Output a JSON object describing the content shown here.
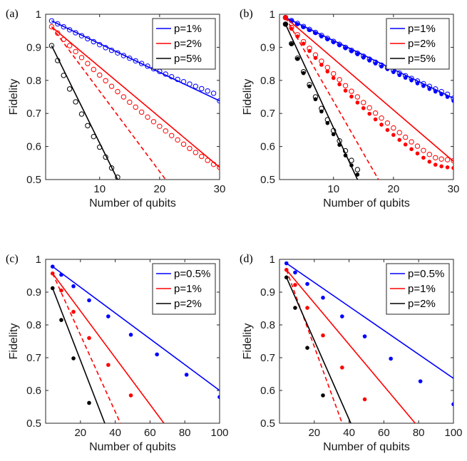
{
  "chart_data": [
    {
      "panel_label": "(a)",
      "type": "line",
      "xlabel": "Number of qubits",
      "ylabel": "Fidelity",
      "xlim": [
        1,
        30
      ],
      "ylim": [
        0.5,
        1
      ],
      "xticks": [
        10,
        20,
        30
      ],
      "yticks": [
        0.5,
        0.6,
        0.7,
        0.8,
        0.9,
        1
      ],
      "ytick_labels": [
        "0.5",
        "0.6",
        "0.7",
        "0.8",
        "0.9",
        "1"
      ],
      "legend_position": "top-right",
      "series": [
        {
          "name": "p=1%",
          "color": "#0000ff",
          "kind": "solid",
          "x": [
            2,
            30
          ],
          "y": [
            0.98,
            0.738
          ]
        },
        {
          "name": "",
          "color": "#0000ff",
          "kind": "open-circles",
          "x": [
            2,
            3,
            4,
            5,
            6,
            7,
            8,
            9,
            10,
            11,
            12,
            13,
            14,
            15,
            16,
            17,
            18,
            19,
            20,
            21,
            22,
            23,
            24,
            25,
            26,
            27,
            28,
            29,
            30
          ],
          "y": [
            0.98,
            0.971,
            0.962,
            0.953,
            0.944,
            0.935,
            0.926,
            0.917,
            0.908,
            0.899,
            0.891,
            0.883,
            0.875,
            0.867,
            0.859,
            0.851,
            0.843,
            0.835,
            0.827,
            0.819,
            0.811,
            0.803,
            0.796,
            0.789,
            0.782,
            0.775,
            0.768,
            0.761,
            0.738
          ]
        },
        {
          "name": "p=2%",
          "color": "#ff0000",
          "kind": "solid",
          "x": [
            2,
            30
          ],
          "y": [
            0.962,
            0.537
          ]
        },
        {
          "name": "",
          "color": "#ff0000",
          "kind": "open-circles",
          "x": [
            2,
            3,
            4,
            5,
            6,
            7,
            8,
            9,
            10,
            11,
            12,
            13,
            14,
            15,
            16,
            17,
            18,
            19,
            20,
            21,
            22,
            23,
            24,
            25,
            26,
            27,
            28,
            29,
            30
          ],
          "y": [
            0.962,
            0.943,
            0.924,
            0.905,
            0.887,
            0.869,
            0.851,
            0.833,
            0.816,
            0.799,
            0.782,
            0.766,
            0.75,
            0.734,
            0.719,
            0.704,
            0.689,
            0.675,
            0.661,
            0.647,
            0.633,
            0.62,
            0.607,
            0.594,
            0.582,
            0.57,
            0.558,
            0.546,
            0.537
          ]
        },
        {
          "name": "",
          "color": "#ff0000",
          "kind": "dashed",
          "x": [
            2,
            21
          ],
          "y": [
            0.962,
            0.5
          ]
        },
        {
          "name": "p=5%",
          "color": "#000000",
          "kind": "solid",
          "x": [
            2,
            13
          ],
          "y": [
            0.905,
            0.5
          ]
        },
        {
          "name": "",
          "color": "#000000",
          "kind": "open-circles",
          "x": [
            2,
            3,
            4,
            5,
            6,
            7,
            8,
            9,
            10,
            11,
            12,
            13
          ],
          "y": [
            0.905,
            0.86,
            0.815,
            0.774,
            0.735,
            0.698,
            0.663,
            0.63,
            0.598,
            0.568,
            0.535,
            0.507
          ]
        }
      ]
    },
    {
      "panel_label": "(b)",
      "type": "line",
      "xlabel": "Number of qubits",
      "ylabel": "Fidelity",
      "xlim": [
        1,
        30
      ],
      "ylim": [
        0.5,
        1
      ],
      "xticks": [
        10,
        20,
        30
      ],
      "yticks": [
        0.5,
        0.6,
        0.7,
        0.8,
        0.9,
        1
      ],
      "ytick_labels": [
        "0.5",
        "0.6",
        "0.7",
        "0.8",
        "0.9",
        "1"
      ],
      "legend_position": "top-right",
      "series": [
        {
          "name": "p=1%",
          "color": "#0000ff",
          "kind": "solid",
          "x": [
            2,
            30
          ],
          "y": [
            0.99,
            0.746
          ]
        },
        {
          "name": "",
          "color": "#0000ff",
          "kind": "open-circles",
          "x": [
            2,
            3,
            4,
            5,
            6,
            7,
            8,
            9,
            10,
            11,
            12,
            13,
            14,
            15,
            16,
            17,
            18,
            19,
            20,
            21,
            22,
            23,
            24,
            25,
            26,
            27,
            28,
            29,
            30
          ],
          "y": [
            0.99,
            0.981,
            0.972,
            0.963,
            0.954,
            0.945,
            0.936,
            0.927,
            0.918,
            0.909,
            0.9,
            0.891,
            0.882,
            0.873,
            0.864,
            0.855,
            0.846,
            0.838,
            0.83,
            0.822,
            0.814,
            0.806,
            0.798,
            0.79,
            0.782,
            0.774,
            0.766,
            0.758,
            0.746
          ]
        },
        {
          "name": "",
          "color": "#0000ff",
          "kind": "filled-dots",
          "x": [
            2,
            3,
            4,
            5,
            6,
            7,
            8,
            9,
            10,
            11,
            12,
            13,
            14,
            15,
            16,
            17,
            18,
            19,
            20,
            21,
            22,
            23,
            24,
            25,
            26,
            27,
            28,
            29,
            30
          ],
          "y": [
            0.99,
            0.98,
            0.97,
            0.961,
            0.952,
            0.943,
            0.933,
            0.924,
            0.915,
            0.906,
            0.897,
            0.888,
            0.879,
            0.869,
            0.86,
            0.851,
            0.842,
            0.834,
            0.825,
            0.816,
            0.808,
            0.8,
            0.791,
            0.783,
            0.774,
            0.766,
            0.758,
            0.75,
            0.738
          ]
        },
        {
          "name": "p=2%",
          "color": "#ff0000",
          "kind": "solid",
          "x": [
            2,
            30
          ],
          "y": [
            0.99,
            0.555
          ]
        },
        {
          "name": "",
          "color": "#ff0000",
          "kind": "open-circles",
          "x": [
            2,
            3,
            4,
            5,
            6,
            7,
            8,
            9,
            10,
            11,
            12,
            13,
            14,
            15,
            16,
            17,
            18,
            19,
            20,
            21,
            22,
            23,
            24,
            25,
            26,
            27,
            28,
            29,
            30
          ],
          "y": [
            0.99,
            0.96,
            0.938,
            0.917,
            0.897,
            0.877,
            0.858,
            0.839,
            0.82,
            0.802,
            0.784,
            0.767,
            0.75,
            0.733,
            0.717,
            0.701,
            0.686,
            0.671,
            0.656,
            0.642,
            0.628,
            0.614,
            0.601,
            0.588,
            0.576,
            0.566,
            0.562,
            0.56,
            0.557
          ]
        },
        {
          "name": "",
          "color": "#ff0000",
          "kind": "filled-dots",
          "x": [
            2,
            3,
            4,
            5,
            6,
            7,
            8,
            9,
            10,
            11,
            12,
            13,
            14,
            15,
            16,
            17,
            18,
            19,
            20,
            21,
            22,
            23,
            24,
            25,
            26,
            27,
            28,
            29,
            30
          ],
          "y": [
            0.99,
            0.956,
            0.933,
            0.911,
            0.889,
            0.868,
            0.847,
            0.827,
            0.807,
            0.788,
            0.769,
            0.751,
            0.733,
            0.716,
            0.699,
            0.682,
            0.666,
            0.65,
            0.635,
            0.62,
            0.606,
            0.592,
            0.579,
            0.566,
            0.554,
            0.545,
            0.54,
            0.537,
            0.535
          ]
        },
        {
          "name": "",
          "color": "#ff0000",
          "kind": "dashed",
          "x": [
            2,
            17.5
          ],
          "y": [
            0.99,
            0.5
          ]
        },
        {
          "name": "p=5%",
          "color": "#000000",
          "kind": "solid",
          "x": [
            2,
            14
          ],
          "y": [
            0.97,
            0.5
          ]
        },
        {
          "name": "",
          "color": "#000000",
          "kind": "open-circles",
          "x": [
            2,
            3,
            4,
            5,
            6,
            7,
            8,
            9,
            10,
            11,
            12,
            13,
            14
          ],
          "y": [
            0.97,
            0.911,
            0.867,
            0.826,
            0.787,
            0.75,
            0.715,
            0.681,
            0.648,
            0.617,
            0.587,
            0.558,
            0.53
          ]
        },
        {
          "name": "",
          "color": "#000000",
          "kind": "filled-dots",
          "x": [
            2,
            3,
            4,
            5,
            6,
            7,
            8,
            9,
            10,
            11,
            12,
            13,
            14
          ],
          "y": [
            0.97,
            0.91,
            0.865,
            0.822,
            0.782,
            0.743,
            0.706,
            0.671,
            0.637,
            0.605,
            0.573,
            0.543,
            0.515
          ]
        }
      ]
    },
    {
      "panel_label": "(c)",
      "type": "line",
      "xlabel": "Number of qubits",
      "ylabel": "Fidelity",
      "xlim": [
        0,
        100
      ],
      "ylim": [
        0.5,
        1
      ],
      "xticks": [
        20,
        40,
        60,
        80,
        100
      ],
      "yticks": [
        0.5,
        0.6,
        0.7,
        0.8,
        0.9,
        1
      ],
      "ytick_labels": [
        "0.5",
        "0.6",
        "0.7",
        "0.8",
        "0.9",
        "1"
      ],
      "legend_position": "top-right",
      "series": [
        {
          "name": "p=0.5%",
          "color": "#0000ff",
          "kind": "solid",
          "x": [
            4,
            100
          ],
          "y": [
            0.978,
            0.6
          ]
        },
        {
          "name": "",
          "color": "#0000ff",
          "kind": "filled-dots",
          "x": [
            4,
            9,
            16,
            25,
            36,
            49,
            64,
            81,
            100
          ],
          "y": [
            0.978,
            0.953,
            0.918,
            0.875,
            0.826,
            0.77,
            0.71,
            0.648,
            0.58
          ]
        },
        {
          "name": "p=1%",
          "color": "#ff0000",
          "kind": "solid",
          "x": [
            4,
            68
          ],
          "y": [
            0.957,
            0.5
          ]
        },
        {
          "name": "",
          "color": "#ff0000",
          "kind": "filled-dots",
          "x": [
            4,
            9,
            16,
            25,
            36,
            49
          ],
          "y": [
            0.957,
            0.905,
            0.84,
            0.76,
            0.678,
            0.585
          ]
        },
        {
          "name": "",
          "color": "#ff0000",
          "kind": "dashed",
          "x": [
            4,
            43
          ],
          "y": [
            0.957,
            0.5
          ]
        },
        {
          "name": "p=2%",
          "color": "#000000",
          "kind": "solid",
          "x": [
            4,
            34
          ],
          "y": [
            0.912,
            0.5
          ]
        },
        {
          "name": "",
          "color": "#000000",
          "kind": "filled-dots",
          "x": [
            4,
            9,
            16,
            25
          ],
          "y": [
            0.912,
            0.815,
            0.698,
            0.562
          ]
        }
      ]
    },
    {
      "panel_label": "(d)",
      "type": "line",
      "xlabel": "Number of qubits",
      "ylabel": "Fidelity",
      "xlim": [
        0,
        100
      ],
      "ylim": [
        0.5,
        1
      ],
      "xticks": [
        20,
        40,
        60,
        80,
        100
      ],
      "yticks": [
        0.5,
        0.6,
        0.7,
        0.8,
        0.9,
        1
      ],
      "ytick_labels": [
        "0.5",
        "0.6",
        "0.7",
        "0.8",
        "0.9",
        "1"
      ],
      "legend_position": "top-right",
      "series": [
        {
          "name": "p=0.5%",
          "color": "#0000ff",
          "kind": "solid",
          "x": [
            4,
            100
          ],
          "y": [
            0.988,
            0.637
          ]
        },
        {
          "name": "",
          "color": "#0000ff",
          "kind": "filled-dots",
          "x": [
            4,
            9,
            16,
            25,
            36,
            49,
            64,
            81,
            100
          ],
          "y": [
            0.988,
            0.96,
            0.925,
            0.883,
            0.826,
            0.765,
            0.697,
            0.628,
            0.558
          ]
        },
        {
          "name": "p=1%",
          "color": "#ff0000",
          "kind": "solid",
          "x": [
            4,
            78
          ],
          "y": [
            0.968,
            0.5
          ]
        },
        {
          "name": "",
          "color": "#ff0000",
          "kind": "filled-dots",
          "x": [
            4,
            9,
            16,
            25,
            36,
            49
          ],
          "y": [
            0.968,
            0.922,
            0.852,
            0.768,
            0.67,
            0.573
          ]
        },
        {
          "name": "",
          "color": "#ff0000",
          "kind": "dashed",
          "x": [
            4,
            36
          ],
          "y": [
            0.968,
            0.5
          ]
        },
        {
          "name": "p=2%",
          "color": "#000000",
          "kind": "solid",
          "x": [
            4,
            41
          ],
          "y": [
            0.945,
            0.5
          ]
        },
        {
          "name": "",
          "color": "#000000",
          "kind": "filled-dots",
          "x": [
            4,
            9,
            16,
            25
          ],
          "y": [
            0.945,
            0.852,
            0.73,
            0.585
          ]
        }
      ]
    }
  ]
}
